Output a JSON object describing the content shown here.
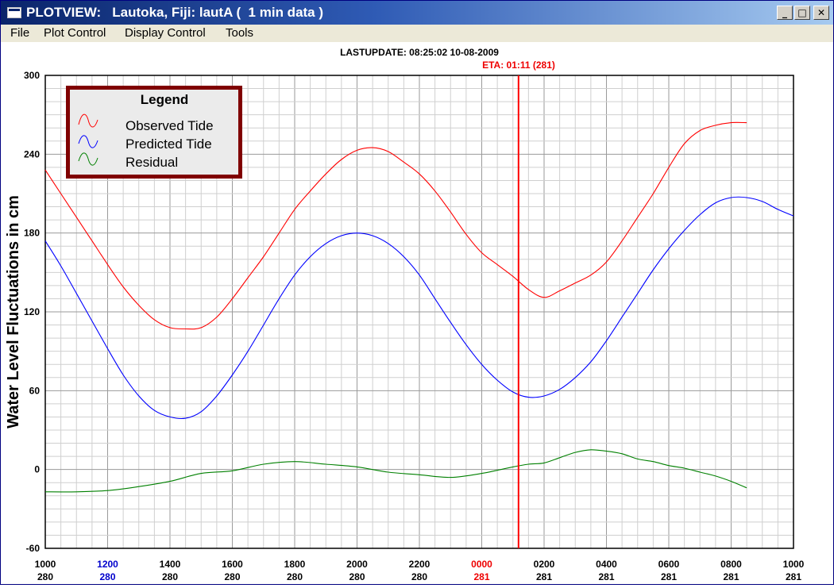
{
  "window": {
    "title": "PLOTVIEW:   Lautoka, Fiji: lautA (  1 min data )",
    "min_symbol": "_",
    "max_symbol": "□",
    "close_symbol": "✕"
  },
  "menu": {
    "items": [
      {
        "label": "File"
      },
      {
        "label": "Plot Control"
      },
      {
        "label": "Display Control"
      },
      {
        "label": "Tools"
      }
    ]
  },
  "header": {
    "last_update": "LASTUPDATE: 08:25:02  10-08-2009",
    "eta": "ETA: 01:11 (281)"
  },
  "colors": {
    "observed": "#ff0000",
    "predicted": "#0000ff",
    "residual": "#008000",
    "eta_line": "#ff0000",
    "legend_border": "#800000"
  },
  "chart_data": {
    "type": "line",
    "title": "",
    "xlabel": "",
    "ylabel": "Water Level Fluctuations in cm",
    "ylim": [
      -60,
      300
    ],
    "xlim": [
      0,
      24
    ],
    "y_ticks": [
      "300",
      "240",
      "180",
      "120",
      "60",
      "0",
      "-60"
    ],
    "x_ticks": [
      {
        "time": "1000",
        "day": "280",
        "time_color": "#000000",
        "day_color": "#000000"
      },
      {
        "time": "1200",
        "day": "280",
        "time_color": "#0000cc",
        "day_color": "#0000cc"
      },
      {
        "time": "1400",
        "day": "280",
        "time_color": "#000000",
        "day_color": "#000000"
      },
      {
        "time": "1600",
        "day": "280",
        "time_color": "#000000",
        "day_color": "#000000"
      },
      {
        "time": "1800",
        "day": "280",
        "time_color": "#000000",
        "day_color": "#000000"
      },
      {
        "time": "2000",
        "day": "280",
        "time_color": "#000000",
        "day_color": "#000000"
      },
      {
        "time": "2200",
        "day": "280",
        "time_color": "#000000",
        "day_color": "#000000"
      },
      {
        "time": "0000",
        "day": "281",
        "time_color": "#ee0000",
        "day_color": "#ee0000"
      },
      {
        "time": "0200",
        "day": "281",
        "time_color": "#000000",
        "day_color": "#000000"
      },
      {
        "time": "0400",
        "day": "281",
        "time_color": "#000000",
        "day_color": "#000000"
      },
      {
        "time": "0600",
        "day": "281",
        "time_color": "#000000",
        "day_color": "#000000"
      },
      {
        "time": "0800",
        "day": "281",
        "time_color": "#000000",
        "day_color": "#000000"
      },
      {
        "time": "1000",
        "day": "281",
        "time_color": "#000000",
        "day_color": "#000000"
      }
    ],
    "eta_x": 15.18,
    "legend": {
      "title": "Legend",
      "placement": "top-left",
      "entries": [
        "Observed Tide",
        "Predicted Tide",
        "Residual"
      ]
    },
    "series": [
      {
        "name": "Observed Tide",
        "x": [
          0,
          0.5,
          1,
          1.5,
          2,
          2.5,
          3,
          3.5,
          4,
          4.5,
          5,
          5.5,
          6,
          6.5,
          7,
          7.5,
          8,
          8.5,
          9,
          9.5,
          10,
          10.5,
          11,
          11.5,
          12,
          12.5,
          13,
          13.5,
          14,
          14.5,
          15,
          15.5,
          16,
          16.5,
          17,
          17.5,
          18,
          18.5,
          19,
          19.5,
          20,
          20.5,
          21,
          21.5,
          22,
          22.5
        ],
        "y": [
          228,
          210,
          192,
          174,
          156,
          139,
          125,
          114,
          108,
          107,
          108,
          116,
          130,
          146,
          162,
          180,
          198,
          212,
          225,
          236,
          243,
          245,
          242,
          234,
          225,
          212,
          196,
          179,
          165,
          156,
          147,
          137,
          131,
          136,
          142,
          148,
          158,
          174,
          192,
          210,
          230,
          248,
          258,
          262,
          264,
          264
        ]
      },
      {
        "name": "Predicted Tide",
        "x": [
          0,
          0.5,
          1,
          1.5,
          2,
          2.5,
          3,
          3.5,
          4,
          4.5,
          5,
          5.5,
          6,
          6.5,
          7,
          7.5,
          8,
          8.5,
          9,
          9.5,
          10,
          10.5,
          11,
          11.5,
          12,
          12.5,
          13,
          13.5,
          14,
          14.5,
          15,
          15.5,
          16,
          16.5,
          17,
          17.5,
          18,
          18.5,
          19,
          19.5,
          20,
          20.5,
          21,
          21.5,
          22,
          22.5,
          23,
          23.5,
          24
        ],
        "y": [
          174,
          155,
          134,
          113,
          92,
          72,
          56,
          45,
          40,
          39,
          44,
          56,
          72,
          90,
          110,
          130,
          148,
          162,
          172,
          178,
          180,
          178,
          172,
          162,
          148,
          130,
          112,
          95,
          80,
          68,
          59,
          55,
          56,
          61,
          70,
          82,
          98,
          116,
          134,
          152,
          168,
          182,
          194,
          203,
          207,
          207,
          204,
          198,
          193
        ]
      },
      {
        "name": "Residual",
        "x": [
          0,
          1,
          2,
          3,
          4,
          5,
          6,
          7,
          8,
          9,
          10,
          11,
          12,
          13,
          14,
          15,
          15.5,
          16,
          16.5,
          17,
          17.5,
          18,
          18.5,
          19,
          19.5,
          20,
          20.5,
          21,
          21.5,
          22,
          22.5
        ],
        "y": [
          -17,
          -17,
          -16,
          -13,
          -9,
          -3,
          -1,
          4,
          6,
          4,
          2,
          -2,
          -4,
          -6,
          -3,
          2,
          4,
          5,
          9,
          13,
          15,
          14,
          12,
          8,
          6,
          3,
          1,
          -2,
          -5,
          -9,
          -14
        ]
      }
    ]
  }
}
